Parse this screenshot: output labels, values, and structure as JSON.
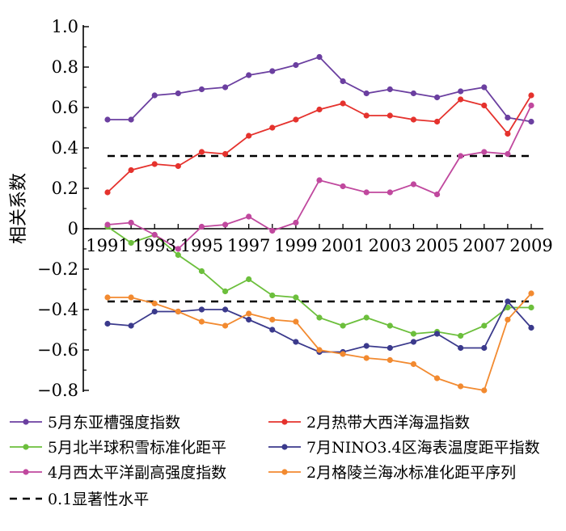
{
  "chart_data": {
    "type": "line",
    "title": "",
    "xlabel": "",
    "ylabel": "相关系数",
    "ylim": [
      -0.8,
      1.0
    ],
    "xlim": [
      1991,
      2009
    ],
    "x": [
      1991,
      1992,
      1993,
      1994,
      1995,
      1996,
      1997,
      1998,
      1999,
      2000,
      2001,
      2002,
      2003,
      2004,
      2005,
      2006,
      2007,
      2008,
      2009
    ],
    "x_ticks": [
      1991,
      1993,
      1995,
      1997,
      1999,
      2001,
      2003,
      2005,
      2007,
      2009
    ],
    "x_tick_labels": [
      "1991",
      "1993",
      "1995",
      "1997",
      "1999",
      "2001",
      "2003",
      "2005",
      "2007",
      "2009"
    ],
    "y_ticks": [
      -0.8,
      -0.6,
      -0.4,
      -0.2,
      0,
      0.2,
      0.4,
      0.6,
      0.8,
      1.0
    ],
    "y_tick_labels": [
      "−0.8",
      "−0.6",
      "−0.4",
      "−0.2",
      "0",
      "0.2",
      "0.4",
      "0.6",
      "0.8",
      "1.0"
    ],
    "grid": false,
    "legend_position": "bottom",
    "series": [
      {
        "name": "5月东亚槽强度指数",
        "color": "#6b3fa0",
        "values": [
          0.54,
          0.54,
          0.66,
          0.67,
          0.69,
          0.7,
          0.76,
          0.78,
          0.81,
          0.85,
          0.73,
          0.67,
          0.69,
          0.67,
          0.65,
          0.68,
          0.7,
          0.55,
          0.53
        ]
      },
      {
        "name": "2月热带大西洋海温指数",
        "color": "#e5322d",
        "values": [
          0.18,
          0.29,
          0.32,
          0.31,
          0.38,
          0.37,
          0.46,
          0.5,
          0.54,
          0.59,
          0.62,
          0.56,
          0.56,
          0.54,
          0.53,
          0.64,
          0.61,
          0.47,
          0.66
        ]
      },
      {
        "name": "5月北半球积雪标准化距平",
        "color": "#6cbf3c",
        "values": [
          0.01,
          -0.07,
          -0.03,
          -0.13,
          -0.21,
          -0.31,
          -0.25,
          -0.33,
          -0.34,
          -0.44,
          -0.48,
          -0.44,
          -0.48,
          -0.52,
          -0.51,
          -0.53,
          -0.48,
          -0.39,
          -0.39
        ]
      },
      {
        "name": "7月NINO3.4区海表温度距平指数",
        "color": "#3b3a8c",
        "values": [
          -0.47,
          -0.48,
          -0.41,
          -0.41,
          -0.4,
          -0.4,
          -0.45,
          -0.5,
          -0.56,
          -0.61,
          -0.61,
          -0.58,
          -0.59,
          -0.56,
          -0.52,
          -0.59,
          -0.59,
          -0.36,
          -0.49
        ]
      },
      {
        "name": "4月西太平洋副高强度指数",
        "color": "#c0489e",
        "values": [
          0.02,
          0.03,
          -0.03,
          -0.1,
          0.01,
          0.02,
          0.06,
          -0.01,
          0.03,
          0.24,
          0.21,
          0.18,
          0.18,
          0.22,
          0.17,
          0.36,
          0.38,
          0.37,
          0.61
        ]
      },
      {
        "name": "2月格陵兰海冰标准化距平序列",
        "color": "#f28a30",
        "values": [
          -0.34,
          -0.34,
          -0.37,
          -0.41,
          -0.46,
          -0.48,
          -0.42,
          -0.45,
          -0.46,
          -0.6,
          -0.62,
          -0.64,
          -0.65,
          -0.67,
          -0.74,
          -0.78,
          -0.8,
          -0.45,
          -0.32
        ]
      }
    ],
    "reference_lines": [
      {
        "name": "0.1显著性水平",
        "values": [
          0.36,
          -0.36
        ],
        "style": "dashed",
        "color": "#000000"
      }
    ]
  }
}
